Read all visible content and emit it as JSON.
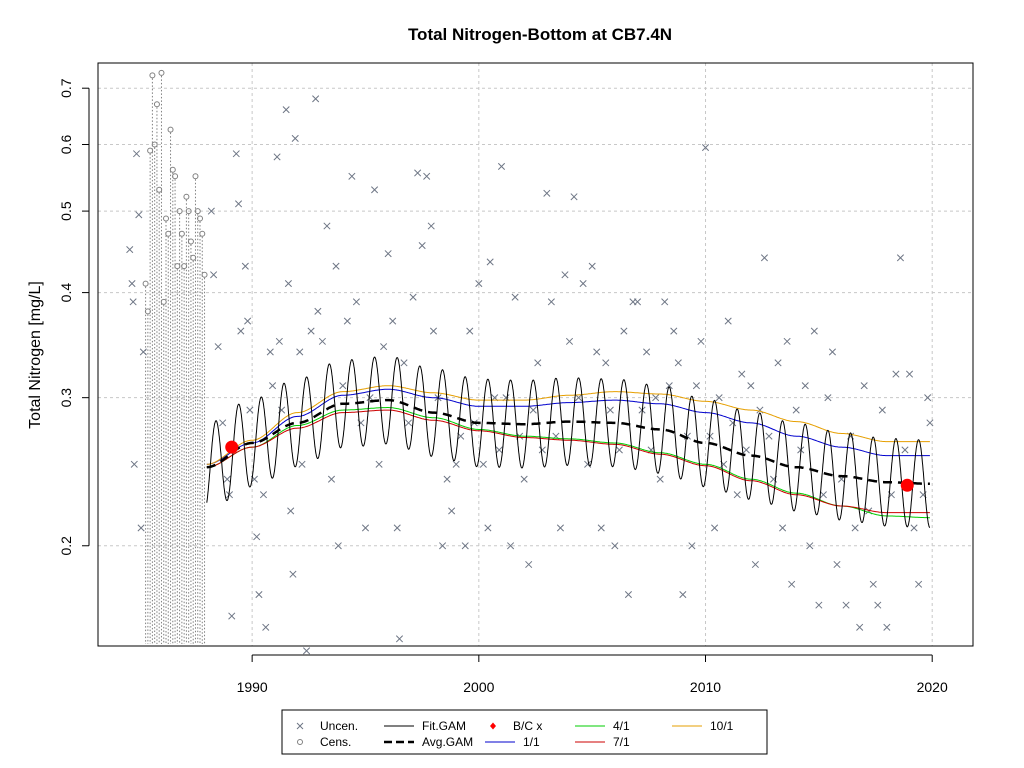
{
  "chart_data": {
    "type": "scatter",
    "title": "Total Nitrogen-Bottom at CB7.4N",
    "xlabel": "",
    "ylabel": "Total Nitrogen [mg/L]",
    "y_scale": "log",
    "xlim": [
      1983.2,
      2021.8
    ],
    "ylim": [
      0.152,
      0.75
    ],
    "x_ticks": [
      1990,
      2000,
      2010,
      2020
    ],
    "y_ticks": [
      0.2,
      0.3,
      0.4,
      0.5,
      0.6,
      0.7
    ],
    "grid": true,
    "legend_position": "bottom",
    "colors": {
      "points": "#808080",
      "fit": "#000000",
      "avg": "#000000",
      "bc": "#ff0000",
      "1_1": "#0000cd",
      "4_1": "#00cd00",
      "7_1": "#cd0000",
      "10_1": "#e69f00",
      "grid": "#c8c8c8"
    },
    "legend": [
      {
        "label": "Uncen.",
        "symbol": "x-icon"
      },
      {
        "label": "Cens.",
        "symbol": "circle-icon"
      },
      {
        "label": "Fit.GAM",
        "symbol": "line-black"
      },
      {
        "label": "Avg.GAM",
        "symbol": "dashed-black"
      },
      {
        "label": "B/C x",
        "symbol": "red-diamond"
      },
      {
        "label": "1/1",
        "symbol": "line-blue"
      },
      {
        "label": "4/1",
        "symbol": "line-green"
      },
      {
        "label": "7/1",
        "symbol": "line-red"
      },
      {
        "label": "10/1",
        "symbol": "line-orange"
      }
    ],
    "bc_points": [
      {
        "x": 1989.1,
        "y": 0.262
      },
      {
        "x": 2018.9,
        "y": 0.236
      }
    ],
    "uncensored_points": [
      [
        1984.6,
        0.45
      ],
      [
        1984.7,
        0.41
      ],
      [
        1984.8,
        0.25
      ],
      [
        1984.9,
        0.585
      ],
      [
        1985.0,
        0.495
      ],
      [
        1985.1,
        0.21
      ],
      [
        1985.2,
        0.34
      ],
      [
        1984.75,
        0.39
      ],
      [
        1988.2,
        0.5
      ],
      [
        1988.3,
        0.42
      ],
      [
        1988.5,
        0.345
      ],
      [
        1988.7,
        0.28
      ],
      [
        1988.9,
        0.24
      ],
      [
        1989.0,
        0.23
      ],
      [
        1989.1,
        0.165
      ],
      [
        1989.3,
        0.585
      ],
      [
        1989.4,
        0.51
      ],
      [
        1989.5,
        0.36
      ],
      [
        1989.7,
        0.43
      ],
      [
        1989.8,
        0.37
      ],
      [
        1989.9,
        0.29
      ],
      [
        1990.1,
        0.24
      ],
      [
        1990.2,
        0.205
      ],
      [
        1990.3,
        0.175
      ],
      [
        1990.5,
        0.23
      ],
      [
        1990.6,
        0.16
      ],
      [
        1990.8,
        0.34
      ],
      [
        1990.9,
        0.31
      ],
      [
        1991.1,
        0.58
      ],
      [
        1991.2,
        0.35
      ],
      [
        1991.3,
        0.29
      ],
      [
        1991.5,
        0.66
      ],
      [
        1991.6,
        0.41
      ],
      [
        1991.7,
        0.22
      ],
      [
        1991.8,
        0.185
      ],
      [
        1991.9,
        0.61
      ],
      [
        1992.1,
        0.34
      ],
      [
        1992.2,
        0.25
      ],
      [
        1992.4,
        0.15
      ],
      [
        1992.6,
        0.36
      ],
      [
        1992.8,
        0.68
      ],
      [
        1992.9,
        0.38
      ],
      [
        1993.1,
        0.35
      ],
      [
        1993.3,
        0.48
      ],
      [
        1993.5,
        0.24
      ],
      [
        1993.7,
        0.43
      ],
      [
        1993.8,
        0.2
      ],
      [
        1994.0,
        0.31
      ],
      [
        1994.2,
        0.37
      ],
      [
        1994.4,
        0.55
      ],
      [
        1994.6,
        0.39
      ],
      [
        1994.8,
        0.28
      ],
      [
        1995.0,
        0.21
      ],
      [
        1995.2,
        0.3
      ],
      [
        1995.4,
        0.53
      ],
      [
        1995.6,
        0.25
      ],
      [
        1995.8,
        0.345
      ],
      [
        1996.0,
        0.445
      ],
      [
        1996.2,
        0.37
      ],
      [
        1996.4,
        0.21
      ],
      [
        1996.5,
        0.155
      ],
      [
        1996.7,
        0.33
      ],
      [
        1996.9,
        0.28
      ],
      [
        1997.1,
        0.395
      ],
      [
        1997.3,
        0.555
      ],
      [
        1997.5,
        0.455
      ],
      [
        1997.7,
        0.55
      ],
      [
        1997.9,
        0.48
      ],
      [
        1998.0,
        0.36
      ],
      [
        1998.2,
        0.3
      ],
      [
        1998.4,
        0.2
      ],
      [
        1998.6,
        0.24
      ],
      [
        1998.8,
        0.22
      ],
      [
        1999.0,
        0.25
      ],
      [
        1999.2,
        0.27
      ],
      [
        1999.4,
        0.2
      ],
      [
        1999.6,
        0.36
      ],
      [
        1999.8,
        0.28
      ],
      [
        2000.0,
        0.41
      ],
      [
        2000.2,
        0.25
      ],
      [
        2000.4,
        0.21
      ],
      [
        2000.5,
        0.435
      ],
      [
        2000.7,
        0.3
      ],
      [
        2000.9,
        0.26
      ],
      [
        2001.0,
        0.565
      ],
      [
        2001.2,
        0.3
      ],
      [
        2001.4,
        0.2
      ],
      [
        2001.6,
        0.395
      ],
      [
        2001.8,
        0.27
      ],
      [
        2002.0,
        0.24
      ],
      [
        2002.2,
        0.19
      ],
      [
        2002.4,
        0.29
      ],
      [
        2002.6,
        0.33
      ],
      [
        2002.8,
        0.26
      ],
      [
        2003.0,
        0.525
      ],
      [
        2003.2,
        0.39
      ],
      [
        2003.4,
        0.27
      ],
      [
        2003.6,
        0.21
      ],
      [
        2003.8,
        0.42
      ],
      [
        2004.0,
        0.35
      ],
      [
        2004.2,
        0.52
      ],
      [
        2004.4,
        0.3
      ],
      [
        2004.6,
        0.41
      ],
      [
        2004.8,
        0.25
      ],
      [
        2005.0,
        0.43
      ],
      [
        2005.2,
        0.34
      ],
      [
        2005.4,
        0.21
      ],
      [
        2005.6,
        0.33
      ],
      [
        2005.8,
        0.29
      ],
      [
        2006.0,
        0.2
      ],
      [
        2006.2,
        0.26
      ],
      [
        2006.4,
        0.36
      ],
      [
        2006.6,
        0.175
      ],
      [
        2006.8,
        0.39
      ],
      [
        2007.0,
        0.39
      ],
      [
        2007.2,
        0.29
      ],
      [
        2007.4,
        0.34
      ],
      [
        2007.6,
        0.26
      ],
      [
        2007.8,
        0.3
      ],
      [
        2008.0,
        0.24
      ],
      [
        2008.2,
        0.39
      ],
      [
        2008.4,
        0.31
      ],
      [
        2008.6,
        0.36
      ],
      [
        2008.8,
        0.33
      ],
      [
        2009.0,
        0.175
      ],
      [
        2009.2,
        0.27
      ],
      [
        2009.4,
        0.2
      ],
      [
        2009.6,
        0.31
      ],
      [
        2009.8,
        0.35
      ],
      [
        2010.0,
        0.595
      ],
      [
        2010.2,
        0.27
      ],
      [
        2010.4,
        0.21
      ],
      [
        2010.6,
        0.3
      ],
      [
        2010.8,
        0.25
      ],
      [
        2011.0,
        0.37
      ],
      [
        2011.2,
        0.28
      ],
      [
        2011.4,
        0.23
      ],
      [
        2011.6,
        0.32
      ],
      [
        2011.8,
        0.26
      ],
      [
        2012.0,
        0.31
      ],
      [
        2012.2,
        0.19
      ],
      [
        2012.4,
        0.29
      ],
      [
        2012.6,
        0.44
      ],
      [
        2012.8,
        0.27
      ],
      [
        2013.0,
        0.24
      ],
      [
        2013.2,
        0.33
      ],
      [
        2013.4,
        0.21
      ],
      [
        2013.6,
        0.35
      ],
      [
        2013.8,
        0.18
      ],
      [
        2014.0,
        0.29
      ],
      [
        2014.2,
        0.26
      ],
      [
        2014.4,
        0.31
      ],
      [
        2014.6,
        0.2
      ],
      [
        2014.8,
        0.36
      ],
      [
        2015.0,
        0.17
      ],
      [
        2015.2,
        0.23
      ],
      [
        2015.4,
        0.3
      ],
      [
        2015.6,
        0.34
      ],
      [
        2015.8,
        0.19
      ],
      [
        2016.0,
        0.24
      ],
      [
        2016.2,
        0.17
      ],
      [
        2016.4,
        0.27
      ],
      [
        2016.6,
        0.21
      ],
      [
        2016.8,
        0.16
      ],
      [
        2017.0,
        0.31
      ],
      [
        2017.2,
        0.22
      ],
      [
        2017.4,
        0.18
      ],
      [
        2017.6,
        0.17
      ],
      [
        2017.8,
        0.29
      ],
      [
        2018.0,
        0.16
      ],
      [
        2018.2,
        0.23
      ],
      [
        2018.4,
        0.32
      ],
      [
        2018.6,
        0.44
      ],
      [
        2018.8,
        0.26
      ],
      [
        2019.0,
        0.32
      ],
      [
        2019.2,
        0.21
      ],
      [
        2019.4,
        0.18
      ],
      [
        2019.6,
        0.23
      ],
      [
        2019.8,
        0.3
      ],
      [
        2019.9,
        0.28
      ]
    ],
    "censored_points": [
      [
        1985.5,
        0.59
      ],
      [
        1985.6,
        0.725
      ],
      [
        1985.7,
        0.6
      ],
      [
        1985.8,
        0.67
      ],
      [
        1985.9,
        0.53
      ],
      [
        1986.0,
        0.73
      ],
      [
        1986.2,
        0.49
      ],
      [
        1986.3,
        0.47
      ],
      [
        1986.4,
        0.625
      ],
      [
        1986.5,
        0.56
      ],
      [
        1986.6,
        0.55
      ],
      [
        1986.7,
        0.43
      ],
      [
        1986.8,
        0.5
      ],
      [
        1986.9,
        0.47
      ],
      [
        1987.0,
        0.43
      ],
      [
        1987.1,
        0.52
      ],
      [
        1987.2,
        0.5
      ],
      [
        1987.3,
        0.46
      ],
      [
        1987.4,
        0.44
      ],
      [
        1987.5,
        0.55
      ],
      [
        1987.6,
        0.5
      ],
      [
        1987.7,
        0.49
      ],
      [
        1987.8,
        0.47
      ],
      [
        1985.3,
        0.41
      ],
      [
        1985.4,
        0.38
      ],
      [
        1986.1,
        0.39
      ],
      [
        1987.9,
        0.42
      ]
    ],
    "gam_fit": {
      "x_start": 1988.0,
      "x_end": 2019.9,
      "baseline_nodes": [
        [
          1988.0,
          0.248
        ],
        [
          1990,
          0.265
        ],
        [
          1992,
          0.28
        ],
        [
          1994,
          0.295
        ],
        [
          1996,
          0.298
        ],
        [
          1998,
          0.288
        ],
        [
          2000,
          0.28
        ],
        [
          2002,
          0.279
        ],
        [
          2004,
          0.281
        ],
        [
          2006,
          0.28
        ],
        [
          2008,
          0.275
        ],
        [
          2010,
          0.265
        ],
        [
          2012,
          0.256
        ],
        [
          2014,
          0.248
        ],
        [
          2016,
          0.242
        ],
        [
          2018,
          0.238
        ],
        [
          2019.9,
          0.237
        ]
      ],
      "seasonal_amplitude": 0.12
    },
    "flow_lines": [
      {
        "name": "1/1",
        "nodes": [
          [
            1988.0,
            0.25
          ],
          [
            1990,
            0.265
          ],
          [
            1992,
            0.285
          ],
          [
            1994,
            0.302
          ],
          [
            1996,
            0.307
          ],
          [
            1998,
            0.3
          ],
          [
            2000,
            0.293
          ],
          [
            2002,
            0.293
          ],
          [
            2004,
            0.296
          ],
          [
            2006,
            0.298
          ],
          [
            2008,
            0.295
          ],
          [
            2010,
            0.288
          ],
          [
            2012,
            0.28
          ],
          [
            2014,
            0.27
          ],
          [
            2016,
            0.262
          ],
          [
            2018,
            0.256
          ],
          [
            2019.9,
            0.256
          ]
        ]
      },
      {
        "name": "4/1",
        "nodes": [
          [
            1988.0,
            0.248
          ],
          [
            1990,
            0.262
          ],
          [
            1992,
            0.278
          ],
          [
            1994,
            0.29
          ],
          [
            1996,
            0.292
          ],
          [
            1998,
            0.284
          ],
          [
            2000,
            0.275
          ],
          [
            2002,
            0.27
          ],
          [
            2004,
            0.268
          ],
          [
            2006,
            0.265
          ],
          [
            2008,
            0.258
          ],
          [
            2010,
            0.25
          ],
          [
            2012,
            0.24
          ],
          [
            2014,
            0.231
          ],
          [
            2016,
            0.223
          ],
          [
            2018,
            0.217
          ],
          [
            2019.9,
            0.216
          ]
        ]
      },
      {
        "name": "7/1",
        "nodes": [
          [
            1988.0,
            0.248
          ],
          [
            1990,
            0.262
          ],
          [
            1992,
            0.276
          ],
          [
            1994,
            0.288
          ],
          [
            1996,
            0.29
          ],
          [
            1998,
            0.282
          ],
          [
            2000,
            0.274
          ],
          [
            2002,
            0.269
          ],
          [
            2004,
            0.267
          ],
          [
            2006,
            0.264
          ],
          [
            2008,
            0.257
          ],
          [
            2010,
            0.249
          ],
          [
            2012,
            0.239
          ],
          [
            2014,
            0.23
          ],
          [
            2016,
            0.223
          ],
          [
            2018,
            0.219
          ],
          [
            2019.9,
            0.219
          ]
        ]
      },
      {
        "name": "10/1",
        "nodes": [
          [
            1988.0,
            0.25
          ],
          [
            1990,
            0.267
          ],
          [
            1992,
            0.288
          ],
          [
            1994,
            0.305
          ],
          [
            1996,
            0.31
          ],
          [
            1998,
            0.304
          ],
          [
            2000,
            0.298
          ],
          [
            2002,
            0.298
          ],
          [
            2004,
            0.302
          ],
          [
            2006,
            0.305
          ],
          [
            2008,
            0.303
          ],
          [
            2010,
            0.297
          ],
          [
            2012,
            0.29
          ],
          [
            2014,
            0.281
          ],
          [
            2016,
            0.272
          ],
          [
            2018,
            0.266
          ],
          [
            2019.9,
            0.266
          ]
        ]
      }
    ]
  }
}
